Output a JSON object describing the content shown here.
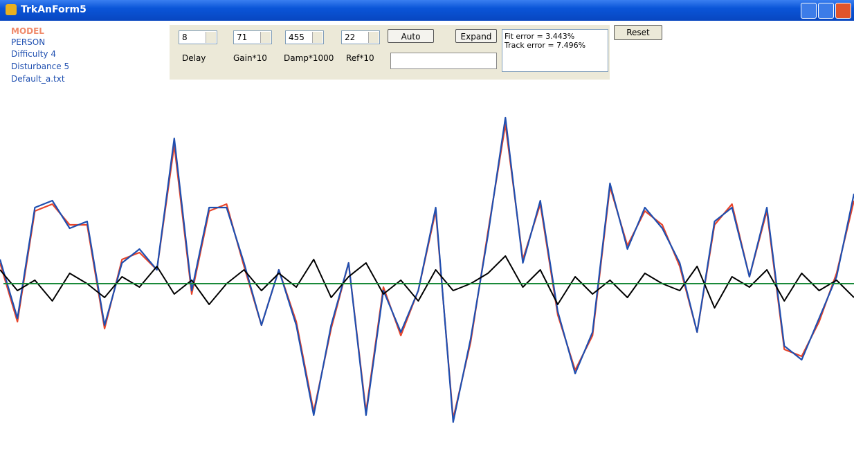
{
  "window": {
    "title": "TrkAnForm5"
  },
  "info": [
    "Difficulty 4",
    "Disturbance 5",
    "Default_a.txt"
  ],
  "controls": {
    "spinners": [
      {
        "value": 8,
        "label": "Delay"
      },
      {
        "value": 71,
        "label": "Gain*10"
      },
      {
        "value": 455,
        "label": "Damp*1000"
      },
      {
        "value": 22,
        "label": "Ref*10"
      }
    ],
    "buttons": {
      "auto": "Auto",
      "expand": "Expand",
      "reset": "Reset"
    },
    "errors": [
      "Fit error = 3.443%",
      "Track error = 7.496%"
    ]
  },
  "plot": {
    "reference": 0,
    "reference_color": "#1a8a3a",
    "series": [
      {
        "name": "MODEL",
        "color": "#e8452a",
        "values": [
          30,
          -55,
          105,
          115,
          85,
          85,
          -65,
          35,
          45,
          20,
          200,
          -15,
          105,
          115,
          25,
          -60,
          20,
          -55,
          -185,
          -65,
          30,
          -185,
          -5,
          -75,
          -10,
          105,
          -195,
          -85,
          75,
          230,
          35,
          115,
          -45,
          -125,
          -75,
          140,
          55,
          105,
          85,
          25,
          -70,
          85,
          115,
          10,
          105,
          -95,
          -105,
          -55,
          15,
          120
        ]
      },
      {
        "name": "PERSON",
        "color": "#1f4fb0",
        "values": [
          35,
          -50,
          110,
          120,
          80,
          90,
          -60,
          30,
          50,
          20,
          210,
          -10,
          110,
          110,
          30,
          -60,
          20,
          -60,
          -190,
          -60,
          30,
          -190,
          -10,
          -70,
          -10,
          110,
          -200,
          -80,
          70,
          240,
          30,
          120,
          -40,
          -130,
          -70,
          145,
          50,
          110,
          80,
          30,
          -70,
          90,
          110,
          10,
          110,
          -90,
          -110,
          -50,
          10,
          130
        ]
      },
      {
        "color": "#000000",
        "values": [
          20,
          -10,
          5,
          -25,
          15,
          0,
          -20,
          10,
          -5,
          25,
          -15,
          5,
          -30,
          0,
          20,
          -10,
          15,
          -5,
          35,
          -20,
          10,
          30,
          -15,
          5,
          -25,
          20,
          -10,
          0,
          15,
          40,
          -5,
          20,
          -30,
          10,
          -15,
          5,
          -20,
          15,
          0,
          -10,
          25,
          -35,
          10,
          -5,
          20,
          -25,
          15,
          -10,
          5,
          -20
        ]
      }
    ]
  }
}
